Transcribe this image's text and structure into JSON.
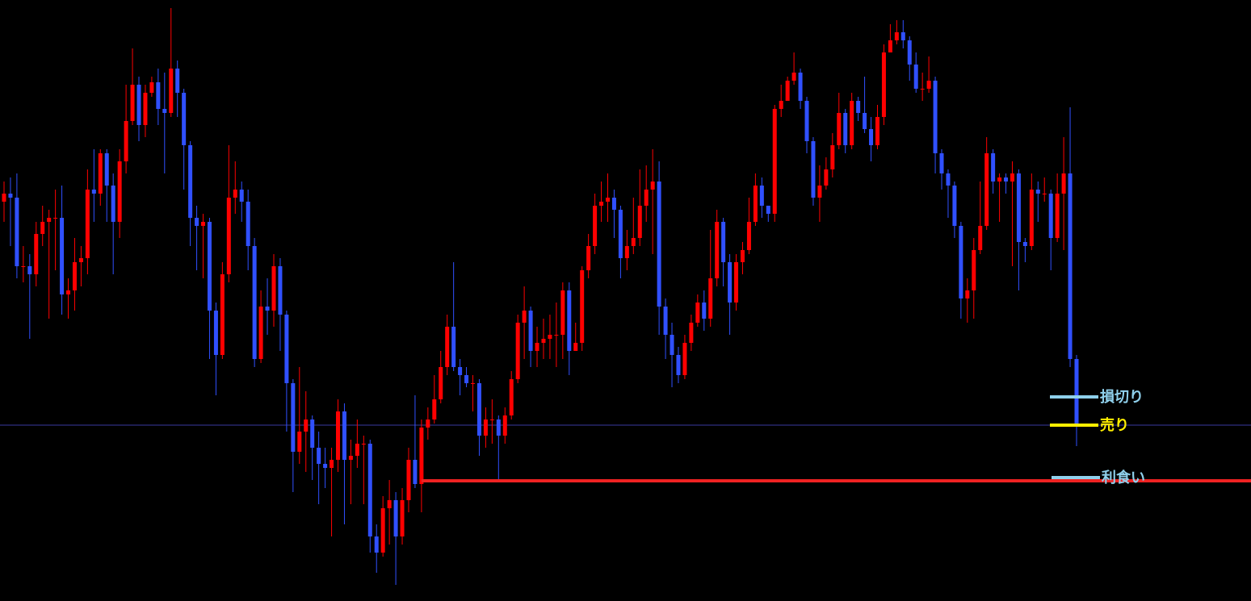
{
  "chart_data": {
    "type": "candlestick",
    "ylim": [
      0,
      745
    ],
    "up_color": "#ff0000",
    "down_color": "#3050ff",
    "open": [
      495,
      505,
      500,
      415,
      415,
      405,
      455,
      470,
      475,
      475,
      380,
      385,
      420,
      425,
      510,
      505,
      555,
      515,
      470,
      545,
      595,
      640,
      590,
      630,
      643,
      610,
      605,
      660,
      630,
      565,
      475,
      465,
      470,
      360,
      305,
      405,
      500,
      510,
      495,
      440,
      300,
      365,
      360,
      415,
      355,
      270,
      185,
      210,
      225,
      190,
      170,
      165,
      175,
      235,
      175,
      180,
      195,
      195,
      80,
      60,
      115,
      125,
      80,
      125,
      175,
      145,
      215,
      225,
      250,
      290,
      340,
      290,
      280,
      270,
      270,
      205,
      225,
      225,
      205,
      230,
      275,
      345,
      360,
      310,
      320,
      325,
      330,
      330,
      385,
      310,
      320,
      410,
      440,
      490,
      495,
      500,
      485,
      425,
      440,
      450,
      490,
      510,
      520,
      365,
      330,
      305,
      280,
      320,
      345,
      370,
      350,
      400,
      470,
      420,
      370,
      420,
      435,
      470,
      515,
      490,
      480,
      610,
      620,
      645,
      655,
      620,
      570,
      500,
      515,
      535,
      565,
      605,
      565,
      620,
      605,
      585,
      565,
      600,
      680,
      695,
      705,
      695,
      665,
      635,
      635,
      645,
      555,
      530,
      515,
      465,
      375,
      385,
      435,
      465,
      555,
      520,
      525,
      520,
      530,
      445,
      440,
      510,
      505,
      505,
      450,
      505,
      530,
      300
    ],
    "high": [
      520,
      525,
      530,
      440,
      430,
      470,
      490,
      485,
      510,
      515,
      400,
      450,
      440,
      535,
      560,
      560,
      560,
      530,
      560,
      640,
      685,
      650,
      640,
      650,
      660,
      655,
      735,
      670,
      635,
      570,
      490,
      480,
      475,
      370,
      420,
      565,
      545,
      520,
      510,
      450,
      385,
      400,
      430,
      425,
      360,
      275,
      290,
      260,
      230,
      210,
      190,
      190,
      250,
      245,
      200,
      225,
      205,
      200,
      95,
      130,
      150,
      135,
      140,
      190,
      255,
      225,
      240,
      280,
      310,
      355,
      420,
      300,
      290,
      280,
      275,
      240,
      250,
      230,
      240,
      285,
      355,
      390,
      365,
      340,
      350,
      355,
      370,
      395,
      395,
      345,
      415,
      455,
      505,
      520,
      530,
      510,
      490,
      460,
      500,
      535,
      540,
      560,
      545,
      375,
      345,
      315,
      330,
      355,
      380,
      385,
      460,
      485,
      475,
      430,
      430,
      445,
      500,
      530,
      525,
      490,
      615,
      640,
      650,
      680,
      660,
      625,
      575,
      540,
      550,
      580,
      630,
      610,
      630,
      625,
      650,
      600,
      615,
      690,
      715,
      720,
      720,
      700,
      680,
      655,
      675,
      650,
      560,
      535,
      520,
      470,
      400,
      450,
      520,
      575,
      560,
      530,
      530,
      545,
      535,
      450,
      530,
      520,
      525,
      510,
      530,
      575,
      612,
      305
    ],
    "low": [
      470,
      440,
      400,
      395,
      325,
      390,
      440,
      350,
      410,
      355,
      350,
      360,
      390,
      405,
      470,
      490,
      470,
      405,
      450,
      530,
      590,
      570,
      575,
      625,
      590,
      530,
      600,
      600,
      510,
      440,
      410,
      400,
      300,
      255,
      300,
      395,
      480,
      470,
      410,
      290,
      295,
      330,
      340,
      310,
      210,
      135,
      170,
      160,
      150,
      120,
      140,
      80,
      160,
      95,
      120,
      165,
      120,
      60,
      35,
      55,
      70,
      20,
      70,
      110,
      140,
      110,
      200,
      220,
      245,
      280,
      285,
      255,
      265,
      235,
      180,
      190,
      195,
      150,
      195,
      225,
      270,
      300,
      290,
      290,
      300,
      300,
      290,
      300,
      280,
      310,
      310,
      400,
      430,
      470,
      470,
      450,
      400,
      410,
      430,
      440,
      470,
      430,
      330,
      300,
      265,
      270,
      275,
      310,
      340,
      335,
      340,
      390,
      390,
      330,
      360,
      405,
      430,
      465,
      475,
      470,
      470,
      600,
      620,
      640,
      610,
      555,
      490,
      470,
      510,
      525,
      560,
      555,
      560,
      595,
      580,
      545,
      560,
      590,
      680,
      690,
      685,
      645,
      630,
      620,
      630,
      530,
      510,
      475,
      450,
      350,
      345,
      350,
      430,
      460,
      505,
      470,
      505,
      415,
      385,
      420,
      435,
      470,
      495,
      410,
      445,
      435,
      290,
      192
    ],
    "close": [
      505,
      500,
      415,
      415,
      405,
      455,
      470,
      475,
      475,
      380,
      385,
      420,
      425,
      510,
      505,
      555,
      515,
      470,
      545,
      595,
      640,
      590,
      630,
      643,
      610,
      605,
      660,
      630,
      565,
      475,
      465,
      470,
      360,
      305,
      405,
      500,
      510,
      495,
      440,
      300,
      365,
      360,
      415,
      355,
      270,
      185,
      210,
      225,
      190,
      170,
      165,
      175,
      235,
      175,
      180,
      195,
      195,
      80,
      60,
      115,
      125,
      80,
      125,
      175,
      145,
      215,
      225,
      250,
      290,
      340,
      290,
      280,
      270,
      270,
      205,
      225,
      225,
      205,
      230,
      275,
      345,
      360,
      310,
      320,
      325,
      330,
      330,
      385,
      310,
      320,
      410,
      440,
      490,
      495,
      500,
      485,
      425,
      440,
      450,
      490,
      510,
      520,
      365,
      330,
      305,
      280,
      320,
      345,
      370,
      350,
      400,
      470,
      420,
      370,
      420,
      435,
      470,
      515,
      490,
      480,
      610,
      620,
      645,
      655,
      620,
      570,
      500,
      515,
      535,
      565,
      605,
      565,
      620,
      605,
      585,
      565,
      600,
      680,
      695,
      705,
      695,
      665,
      635,
      635,
      645,
      555,
      530,
      515,
      465,
      375,
      385,
      435,
      465,
      555,
      520,
      525,
      520,
      530,
      445,
      440,
      510,
      505,
      505,
      450,
      505,
      530,
      300,
      218
    ],
    "current_price": 218,
    "current_price_color": "#3a3aa0",
    "support_line": {
      "value": 149,
      "start_candle": 65,
      "color": "#ee2222"
    },
    "levels": [
      {
        "name": "損切り",
        "value": 253,
        "color": "#8fd0ec"
      },
      {
        "name": "売り",
        "value": 218,
        "color": "#ffee00"
      },
      {
        "name": "利食い",
        "value": 153,
        "color": "#8fd0ec"
      }
    ]
  }
}
